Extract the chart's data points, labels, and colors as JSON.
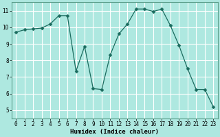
{
  "x": [
    0,
    1,
    2,
    3,
    4,
    5,
    6,
    7,
    8,
    9,
    10,
    11,
    12,
    13,
    14,
    15,
    16,
    17,
    18,
    19,
    20,
    21,
    22,
    23
  ],
  "y": [
    9.7,
    9.85,
    9.9,
    9.95,
    10.2,
    10.7,
    10.7,
    7.35,
    8.85,
    6.3,
    6.25,
    8.35,
    9.6,
    10.2,
    11.1,
    11.1,
    10.95,
    11.1,
    10.1,
    8.9,
    7.5,
    6.25,
    6.25,
    5.2
  ],
  "line_color": "#1a6b5e",
  "marker": "D",
  "marker_size": 2.5,
  "bg_color": "#aee8e0",
  "grid_color": "#ffffff",
  "xlabel": "Humidex (Indice chaleur)",
  "xlim": [
    -0.5,
    23.5
  ],
  "ylim": [
    4.5,
    11.5
  ],
  "yticks": [
    5,
    6,
    7,
    8,
    9,
    10,
    11
  ],
  "xticks": [
    0,
    1,
    2,
    3,
    4,
    5,
    6,
    7,
    8,
    9,
    10,
    11,
    12,
    13,
    14,
    15,
    16,
    17,
    18,
    19,
    20,
    21,
    22,
    23
  ],
  "label_fontsize": 6.5,
  "tick_fontsize": 5.5
}
